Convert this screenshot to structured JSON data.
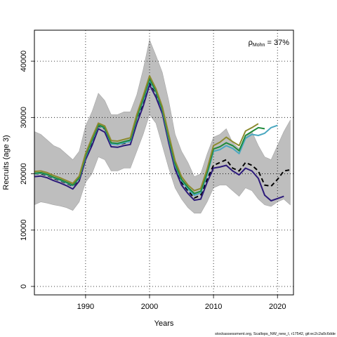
{
  "chart_data": {
    "type": "line",
    "xlabel": "Years",
    "ylabel": "Recruits (age 3)",
    "xlim": [
      1982,
      2022.5
    ],
    "ylim": [
      -1500,
      45500
    ],
    "x_ticks": [
      1990,
      2000,
      2010,
      2020
    ],
    "y_ticks": [
      0,
      10000,
      20000,
      30000,
      40000
    ],
    "grid": true,
    "annotation": {
      "symbol": "ρ",
      "subscript": "Mohn",
      "text": " = 37%"
    },
    "footer": "stockassessment.org, Scallops_NW_new_I, r17542, git:ec2c2a0c6dde",
    "band": {
      "x": [
        1982,
        1983,
        1984,
        1985,
        1986,
        1987,
        1988,
        1989,
        1990,
        1991,
        1992,
        1993,
        1994,
        1995,
        1996,
        1997,
        1998,
        1999,
        2000,
        2001,
        2002,
        2003,
        2004,
        2005,
        2006,
        2007,
        2008,
        2009,
        2010,
        2011,
        2012,
        2013,
        2014,
        2015,
        2016,
        2017,
        2018,
        2019,
        2020,
        2021,
        2022
      ],
      "upper": [
        27500,
        27000,
        26000,
        25000,
        24500,
        23500,
        22500,
        24000,
        28500,
        31000,
        34300,
        33000,
        30500,
        30500,
        31000,
        31000,
        34000,
        38500,
        43800,
        41000,
        38000,
        33000,
        27000,
        24000,
        22000,
        19500,
        20000,
        23500,
        26500,
        27000,
        28000,
        25500,
        24500,
        26500,
        27500,
        25000,
        23000,
        22500,
        25000,
        27500,
        29500
      ],
      "lower": [
        14500,
        15000,
        14800,
        14500,
        14300,
        14000,
        13500,
        15000,
        18500,
        20000,
        23000,
        22500,
        20500,
        20500,
        21000,
        21000,
        24000,
        27000,
        30500,
        29000,
        25000,
        21000,
        17500,
        15500,
        14000,
        13000,
        13000,
        15000,
        17500,
        18000,
        18000,
        17000,
        16000,
        17500,
        17000,
        15500,
        14500,
        14200,
        15000,
        15500,
        14500
      ]
    },
    "series": [
      {
        "color": "#000000",
        "dashed": true,
        "width": 2,
        "x": [
          1982,
          1983,
          1984,
          1985,
          1986,
          1987,
          1988,
          1989,
          1990,
          1991,
          1992,
          1993,
          1994,
          1995,
          1996,
          1997,
          1998,
          1999,
          2000,
          2001,
          2002,
          2003,
          2004,
          2005,
          2006,
          2007,
          2008,
          2009,
          2010,
          2011,
          2012,
          2013,
          2014,
          2015,
          2016,
          2017,
          2018,
          2019,
          2020,
          2021,
          2022
        ],
        "y": [
          20000,
          20000,
          19700,
          19200,
          18800,
          18300,
          17800,
          19000,
          22800,
          25500,
          28500,
          28000,
          25400,
          25200,
          25400,
          25800,
          29800,
          32200,
          36200,
          34300,
          31000,
          25700,
          21000,
          18500,
          17000,
          15700,
          16200,
          19000,
          21500,
          22000,
          22500,
          21000,
          20500,
          22000,
          21500,
          20500,
          18000,
          17800,
          19000,
          20500,
          20700
        ]
      },
      {
        "color": "#2c1a7a",
        "dashed": false,
        "width": 2,
        "x": [
          1982,
          1983,
          1984,
          1985,
          1986,
          1987,
          1988,
          1989,
          1990,
          1991,
          1992,
          1993,
          1994,
          1995,
          1996,
          1997,
          1998,
          1999,
          2000,
          2001,
          2002,
          2003,
          2004,
          2005,
          2006,
          2007,
          2008,
          2009,
          2010,
          2011,
          2012,
          2013,
          2014,
          2015,
          2016,
          2017,
          2018,
          2019,
          2020,
          2021
        ],
        "y": [
          19500,
          19600,
          19300,
          18800,
          18400,
          17900,
          17300,
          18700,
          22500,
          25000,
          28000,
          27400,
          24800,
          24700,
          25000,
          25200,
          28900,
          32000,
          35800,
          33600,
          30700,
          25500,
          20800,
          18000,
          16500,
          15300,
          15500,
          18500,
          21000,
          21200,
          21500,
          20500,
          19800,
          21000,
          20500,
          19200,
          16200,
          15200,
          15600,
          16000
        ]
      },
      {
        "color": "#4aa8c0",
        "dashed": false,
        "width": 2,
        "x": [
          1982,
          1983,
          1984,
          1985,
          1986,
          1987,
          1988,
          1989,
          1990,
          1991,
          1992,
          1993,
          1994,
          1995,
          1996,
          1997,
          1998,
          1999,
          2000,
          2001,
          2002,
          2003,
          2004,
          2005,
          2006,
          2007,
          2008,
          2009,
          2010,
          2011,
          2012,
          2013,
          2014,
          2015,
          2016,
          2017,
          2018,
          2019,
          2020
        ],
        "y": [
          20000,
          20100,
          19800,
          19300,
          18900,
          18400,
          17900,
          19200,
          23000,
          25800,
          28600,
          28100,
          25300,
          25200,
          25500,
          25800,
          29800,
          33000,
          36600,
          34500,
          31300,
          26200,
          21500,
          18800,
          17300,
          16200,
          16600,
          19800,
          24000,
          24300,
          25000,
          24500,
          23600,
          26300,
          27000,
          26800,
          27200,
          28200,
          28600
        ]
      },
      {
        "color": "#1f8a3c",
        "dashed": false,
        "width": 2,
        "x": [
          1982,
          1983,
          1984,
          1985,
          1986,
          1987,
          1988,
          1989,
          1990,
          1991,
          1992,
          1993,
          1994,
          1995,
          1996,
          1997,
          1998,
          1999,
          2000,
          2001,
          2002,
          2003,
          2004,
          2005,
          2006,
          2007,
          2008,
          2009,
          2010,
          2011,
          2012,
          2013,
          2014,
          2015,
          2016,
          2017,
          2018
        ],
        "y": [
          20100,
          20200,
          19900,
          19400,
          19000,
          18500,
          18000,
          19300,
          23200,
          26000,
          28700,
          28200,
          25500,
          25400,
          25700,
          26000,
          30000,
          33300,
          36900,
          34700,
          31500,
          26500,
          21800,
          19000,
          17600,
          16500,
          16900,
          20200,
          24400,
          24800,
          25500,
          25000,
          24100,
          26800,
          27500,
          28200,
          28000
        ]
      },
      {
        "color": "#8c8a2e",
        "dashed": false,
        "width": 2,
        "x": [
          1982,
          1983,
          1984,
          1985,
          1986,
          1987,
          1988,
          1989,
          1990,
          1991,
          1992,
          1993,
          1994,
          1995,
          1996,
          1997,
          1998,
          1999,
          2000,
          2001,
          2002,
          2003,
          2004,
          2005,
          2006,
          2007,
          2008,
          2009,
          2010,
          2011,
          2012,
          2013,
          2014,
          2015,
          2016,
          2017
        ],
        "y": [
          20400,
          20500,
          20200,
          19700,
          19300,
          18800,
          18300,
          19600,
          23600,
          26400,
          29000,
          28500,
          25900,
          25800,
          26100,
          26400,
          30500,
          33800,
          37400,
          35100,
          31900,
          27000,
          22300,
          19500,
          18000,
          17000,
          17400,
          20800,
          25000,
          25600,
          26500,
          25700,
          25000,
          27600,
          28200,
          28900
        ]
      }
    ]
  }
}
